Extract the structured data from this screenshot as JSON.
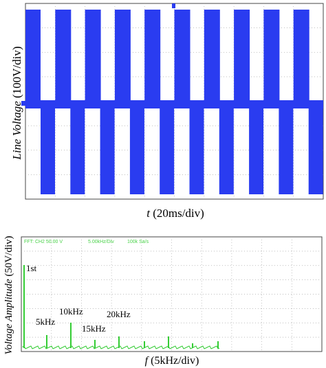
{
  "top_panel": {
    "y_label": {
      "italic": "Line Voltage",
      "unit": "(100V/div)"
    },
    "x_label": {
      "italic": "t",
      "unit": "(20ms/div)"
    }
  },
  "bottom_panel": {
    "scope_header": [
      "FFT: CH2 50.00 V",
      "5.00kHz/Div",
      "100k Sa/s"
    ],
    "y_label": {
      "italic": "Voltage Amplitude",
      "unit": "(50V/div)"
    },
    "x_label": {
      "italic": "f",
      "unit": "(5kHz/div)"
    },
    "annotations": [
      "1st",
      "5kHz",
      "10kHz",
      "15kHz",
      "20kHz"
    ]
  }
}
